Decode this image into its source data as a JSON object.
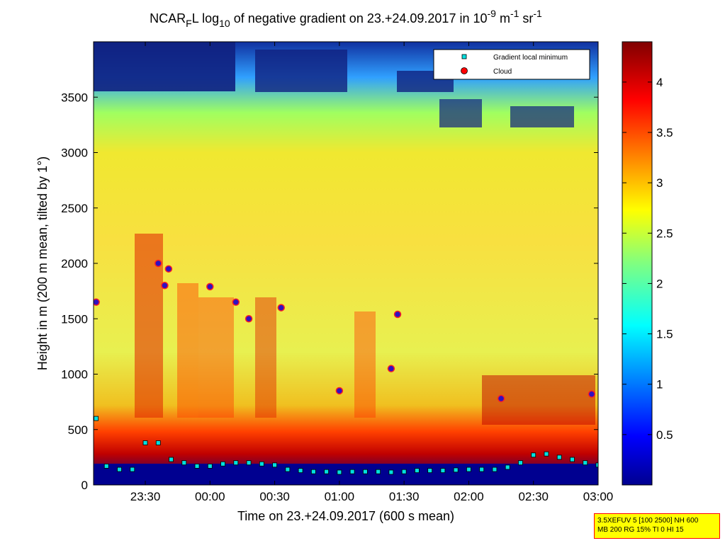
{
  "chart_data": {
    "type": "heatmap",
    "title": {
      "p1": "NCAR",
      "p1_sub": "F",
      "p2": "L log",
      "p2_sub": "10",
      "p3": " of negative gradient on 23.+24.09.2017 in 10",
      "exp1": "-9",
      "p4": " m",
      "exp2": "-1",
      "p5": " sr",
      "exp3": "-1"
    },
    "xlabel": "Time on 23.+24.09.2017 (600 s mean)",
    "ylabel": "Height in m (200 m mean, tilted by 1°)",
    "x_ticks": [
      "23:30",
      "00:00",
      "00:30",
      "01:00",
      "01:30",
      "02:00",
      "02:30",
      "03:00"
    ],
    "x_tick_hours": [
      23.5,
      24.0,
      24.5,
      25.0,
      25.5,
      26.0,
      26.5,
      27.0
    ],
    "xlim_hours": [
      23.1,
      27.0
    ],
    "y_ticks": [
      "0",
      "500",
      "1000",
      "1500",
      "2000",
      "2500",
      "3000",
      "3500"
    ],
    "y_tick_values": [
      0,
      500,
      1000,
      1500,
      2000,
      2500,
      3000,
      3500
    ],
    "ylim": [
      0,
      4000
    ],
    "colorbar": {
      "ticks": [
        "0.5",
        "1",
        "1.5",
        "2",
        "2.5",
        "3",
        "3.5",
        "4"
      ],
      "tick_values": [
        0.5,
        1,
        1.5,
        2,
        2.5,
        3,
        3.5,
        4
      ],
      "range": [
        0,
        4.4
      ],
      "colormap": "jet"
    },
    "legend": {
      "placement": "top-right",
      "entries": [
        {
          "label": "Gradient local minimum",
          "marker": "square",
          "color": "#00e0e0"
        },
        {
          "label": "Cloud",
          "marker": "circle",
          "color": "#ff0000"
        }
      ]
    },
    "gradient_local_minimum": {
      "hours": [
        23.12,
        23.2,
        23.3,
        23.4,
        23.5,
        23.6,
        23.7,
        23.8,
        23.9,
        24.0,
        24.1,
        24.2,
        24.3,
        24.4,
        24.5,
        24.6,
        24.7,
        24.8,
        24.9,
        25.0,
        25.1,
        25.2,
        25.3,
        25.4,
        25.5,
        25.6,
        25.7,
        25.8,
        25.9,
        26.0,
        26.1,
        26.2,
        26.3,
        26.4,
        26.5,
        26.6,
        26.7,
        26.8,
        26.9,
        27.0
      ],
      "heights": [
        600,
        170,
        140,
        140,
        380,
        380,
        230,
        200,
        170,
        170,
        190,
        200,
        200,
        190,
        180,
        140,
        130,
        120,
        120,
        115,
        120,
        120,
        120,
        115,
        120,
        130,
        130,
        130,
        135,
        140,
        140,
        140,
        160,
        200,
        270,
        280,
        250,
        230,
        200,
        180
      ]
    },
    "cloud_points": [
      {
        "hour": 23.12,
        "height": 1650
      },
      {
        "hour": 23.6,
        "height": 2000
      },
      {
        "hour": 23.65,
        "height": 1800
      },
      {
        "hour": 23.68,
        "height": 1950
      },
      {
        "hour": 24.0,
        "height": 1790
      },
      {
        "hour": 24.2,
        "height": 1650
      },
      {
        "hour": 24.3,
        "height": 1500
      },
      {
        "hour": 24.55,
        "height": 1600
      },
      {
        "hour": 25.0,
        "height": 850
      },
      {
        "hour": 25.45,
        "height": 1540
      },
      {
        "hour": 25.4,
        "height": 1050
      },
      {
        "hour": 26.25,
        "height": 780
      },
      {
        "hour": 26.95,
        "height": 820
      }
    ]
  },
  "settings_box": {
    "line1": "3.5XEFUV 5 [100 2500] NH 600",
    "line2": "MB 200 RG 15% TI 0 HI 15"
  }
}
